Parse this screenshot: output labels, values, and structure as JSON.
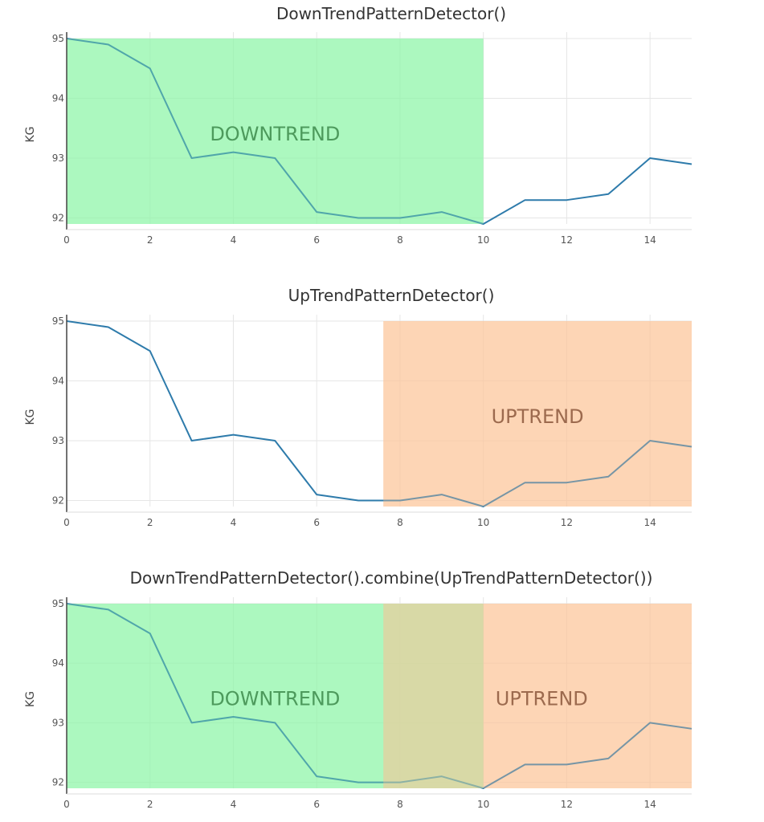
{
  "chart_data": [
    {
      "type": "line",
      "title": "DownTrendPatternDetector()",
      "ylabel": "KG",
      "xlim": [
        0,
        15
      ],
      "ylim": [
        91.9,
        95
      ],
      "xticks": [
        0,
        2,
        4,
        6,
        8,
        10,
        12,
        14
      ],
      "yticks": [
        92,
        93,
        94,
        95
      ],
      "grid": true,
      "x": [
        0,
        1,
        2,
        3,
        4,
        5,
        6,
        7,
        8,
        9,
        10,
        11,
        12,
        13,
        14,
        15
      ],
      "values": [
        95,
        94.9,
        94.5,
        93,
        93.1,
        93,
        92.1,
        92,
        92,
        92.1,
        91.9,
        92.3,
        92.3,
        92.4,
        93,
        92.9
      ],
      "line_color": "#2e7bab",
      "regions": [
        {
          "label": "DOWNTREND",
          "x0": 0,
          "x1": 10,
          "color": "#90f5a8",
          "text_color": "#4d9a5c"
        }
      ]
    },
    {
      "type": "line",
      "title": "UpTrendPatternDetector()",
      "ylabel": "KG",
      "xlim": [
        0,
        15
      ],
      "ylim": [
        91.9,
        95
      ],
      "xticks": [
        0,
        2,
        4,
        6,
        8,
        10,
        12,
        14
      ],
      "yticks": [
        92,
        93,
        94,
        95
      ],
      "grid": true,
      "x": [
        0,
        1,
        2,
        3,
        4,
        5,
        6,
        7,
        8,
        9,
        10,
        11,
        12,
        13,
        14,
        15
      ],
      "values": [
        95,
        94.9,
        94.5,
        93,
        93.1,
        93,
        92.1,
        92,
        92,
        92.1,
        91.9,
        92.3,
        92.3,
        92.4,
        93,
        92.9
      ],
      "line_color": "#2e7bab",
      "regions": [
        {
          "label": "UPTREND",
          "x0": 7.6,
          "x1": 15,
          "color": "#fcc69c",
          "text_color": "#9c6a4e"
        }
      ]
    },
    {
      "type": "line",
      "title": "DownTrendPatternDetector().combine(UpTrendPatternDetector())",
      "ylabel": "KG",
      "xlim": [
        0,
        15
      ],
      "ylim": [
        91.9,
        95
      ],
      "xticks": [
        0,
        2,
        4,
        6,
        8,
        10,
        12,
        14
      ],
      "yticks": [
        92,
        93,
        94,
        95
      ],
      "grid": true,
      "x": [
        0,
        1,
        2,
        3,
        4,
        5,
        6,
        7,
        8,
        9,
        10,
        11,
        12,
        13,
        14,
        15
      ],
      "values": [
        95,
        94.9,
        94.5,
        93,
        93.1,
        93,
        92.1,
        92,
        92,
        92.1,
        91.9,
        92.3,
        92.3,
        92.4,
        93,
        92.9
      ],
      "line_color": "#2e7bab",
      "regions": [
        {
          "label": "DOWNTREND",
          "x0": 0,
          "x1": 10,
          "color": "#90f5a8",
          "text_color": "#4d9a5c"
        },
        {
          "label": "UPTREND",
          "x0": 7.6,
          "x1": 15,
          "color": "#fcc69c",
          "text_color": "#9c6a4e"
        }
      ]
    }
  ]
}
